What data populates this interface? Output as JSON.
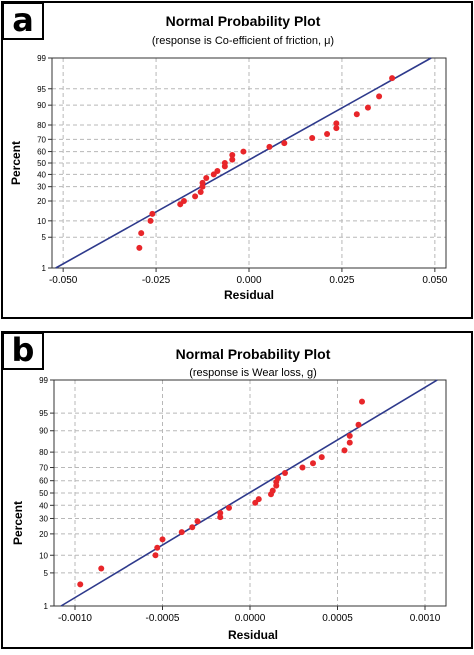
{
  "panels": [
    {
      "letter": "a",
      "title": "Normal Probability Plot",
      "subtitle": "(response is Co-efficient of friction, μ)",
      "xlabel": "Residual",
      "ylabel": "Percent"
    },
    {
      "letter": "b",
      "title": "Normal Probability Plot",
      "subtitle": "(response is Wear loss, g)",
      "xlabel": "Residual",
      "ylabel": "Percent"
    }
  ],
  "colors": {
    "points": "#e8262a",
    "fit_line": "#2e3a8c",
    "grid": "#b8b8b8",
    "frame": "#333333"
  },
  "chart_data": [
    {
      "type": "scatter",
      "title": "Normal Probability Plot",
      "subtitle": "(response is Co-efficient of friction, μ)",
      "xlabel": "Residual",
      "ylabel": "Percent",
      "xlim": [
        -0.053,
        0.053
      ],
      "xticks": [
        -0.05,
        -0.025,
        0,
        0.025,
        0.05
      ],
      "xtick_labels": [
        "-0.050",
        "-0.025",
        "0.000",
        "0.025",
        "0.050"
      ],
      "yscale": "normal-probability",
      "yticks": [
        1,
        5,
        10,
        20,
        30,
        40,
        50,
        60,
        70,
        80,
        90,
        95,
        99
      ],
      "grid": true,
      "fit_line": {
        "x": [
          -0.052,
          0.049
        ],
        "y": [
          1,
          99
        ]
      },
      "series": [
        {
          "x": [
            -0.0295,
            -0.029,
            -0.0265,
            -0.026,
            -0.0185,
            -0.0175,
            -0.0145,
            -0.013,
            -0.0125,
            -0.0125,
            -0.0115,
            -0.0095,
            -0.0085,
            -0.0065,
            -0.0065,
            -0.0045,
            -0.0045,
            -0.0015,
            0.0055,
            0.0095,
            0.017,
            0.021,
            0.0235,
            0.0235,
            0.029,
            0.032,
            0.035,
            0.0385
          ],
          "y": [
            3,
            6,
            10,
            13,
            18,
            20,
            23,
            26,
            30,
            33,
            37,
            40,
            43,
            47,
            50,
            53,
            57,
            60,
            64,
            67,
            71,
            74,
            78,
            81,
            86,
            89,
            93,
            97
          ]
        }
      ]
    },
    {
      "type": "scatter",
      "title": "Normal Probability Plot",
      "subtitle": "(response is Wear loss, g)",
      "xlabel": "Residual",
      "ylabel": "Percent",
      "xlim": [
        -0.00112,
        0.00112
      ],
      "xticks": [
        -0.001,
        -0.0005,
        0,
        0.0005,
        0.001
      ],
      "xtick_labels": [
        "-0.0010",
        "-0.0005",
        "0.0000",
        "0.0005",
        "0.0010"
      ],
      "yscale": "normal-probability",
      "yticks": [
        1,
        5,
        10,
        20,
        30,
        40,
        50,
        60,
        70,
        80,
        90,
        95,
        99
      ],
      "grid": true,
      "fit_line": {
        "x": [
          -0.00108,
          0.00107
        ],
        "y": [
          1,
          99
        ]
      },
      "series": [
        {
          "x": [
            -0.00097,
            -0.00085,
            -0.00054,
            -0.00053,
            -0.0005,
            -0.00039,
            -0.00033,
            -0.0003,
            -0.00017,
            -0.00017,
            -0.00012,
            3e-05,
            5e-05,
            0.00012,
            0.00013,
            0.00015,
            0.00015,
            0.00016,
            0.0002,
            0.0003,
            0.00036,
            0.00041,
            0.00054,
            0.00057,
            0.00057,
            0.00062,
            0.00064
          ],
          "y": [
            3,
            6,
            10,
            13,
            17,
            21,
            24,
            28,
            31,
            34,
            38,
            42,
            45,
            49,
            52,
            56,
            59,
            62,
            66,
            70,
            73,
            77,
            81,
            85,
            88,
            92,
            97
          ]
        }
      ]
    }
  ]
}
